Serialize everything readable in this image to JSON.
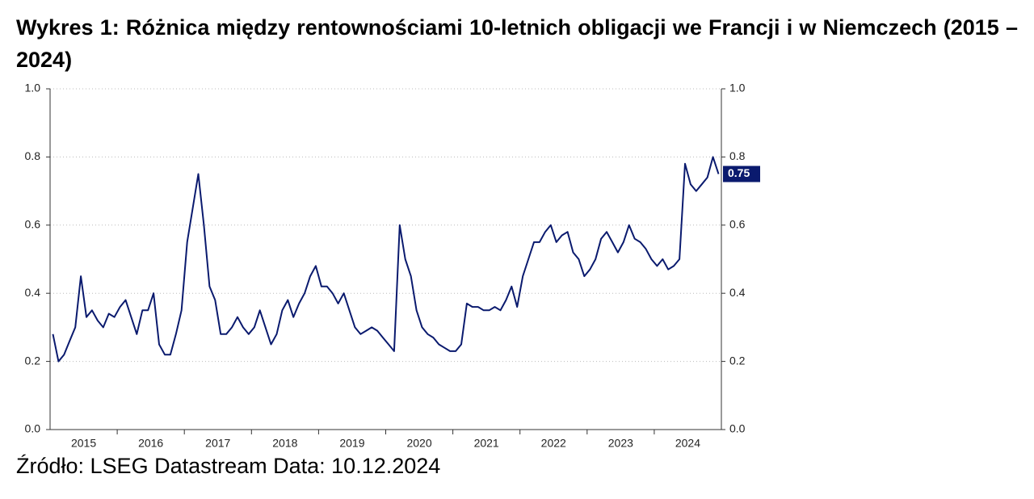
{
  "chart_data": {
    "type": "line",
    "title": "Wykres 1: Różnica między rentownościami 10-letnich obligacji we Francji i w Niemczech (2015 – 2024)",
    "source": "Źródło: LSEG Datastream Data: 10.12.2024",
    "categories": [
      null,
      null,
      null,
      null,
      null,
      null,
      "2015",
      null,
      null,
      null,
      null,
      null,
      null,
      null,
      null,
      null,
      null,
      null,
      "2016",
      null,
      null,
      null,
      null,
      null,
      null,
      null,
      null,
      null,
      null,
      null,
      "2017",
      null,
      null,
      null,
      null,
      null,
      null,
      null,
      null,
      null,
      null,
      null,
      "2018",
      null,
      null,
      null,
      null,
      null,
      null,
      null,
      null,
      null,
      null,
      null,
      "2019",
      null,
      null,
      null,
      null,
      null,
      null,
      null,
      null,
      null,
      null,
      null,
      "2020",
      null,
      null,
      null,
      null,
      null,
      null,
      null,
      null,
      null,
      null,
      null,
      "2021",
      null,
      null,
      null,
      null,
      null,
      null,
      null,
      null,
      null,
      null,
      null,
      "2022",
      null,
      null,
      null,
      null,
      null,
      null,
      null,
      null,
      null,
      null,
      null,
      "2023",
      null,
      null,
      null,
      null,
      null,
      null,
      null,
      null,
      null,
      null,
      null,
      "2024",
      null,
      null,
      null,
      null,
      null
    ],
    "series": [
      {
        "color": "#0a1a6e",
        "values": [
          0.28,
          0.2,
          0.22,
          0.26,
          0.3,
          0.45,
          0.33,
          0.35,
          0.32,
          0.3,
          0.34,
          0.33,
          0.36,
          0.38,
          0.33,
          0.28,
          0.35,
          0.35,
          0.4,
          0.25,
          0.22,
          0.22,
          0.28,
          0.35,
          0.55,
          0.65,
          0.75,
          0.6,
          0.42,
          0.38,
          0.28,
          0.28,
          0.3,
          0.33,
          0.3,
          0.28,
          0.3,
          0.35,
          0.3,
          0.25,
          0.28,
          0.35,
          0.38,
          0.33,
          0.37,
          0.4,
          0.45,
          0.48,
          0.42,
          0.42,
          0.4,
          0.37,
          0.4,
          0.35,
          0.3,
          0.28,
          0.29,
          0.3,
          0.29,
          0.27,
          0.25,
          0.23,
          0.6,
          0.5,
          0.45,
          0.35,
          0.3,
          0.28,
          0.27,
          0.25,
          0.24,
          0.23,
          0.23,
          0.25,
          0.37,
          0.36,
          0.36,
          0.35,
          0.35,
          0.36,
          0.35,
          0.38,
          0.42,
          0.36,
          0.45,
          0.5,
          0.55,
          0.55,
          0.58,
          0.6,
          0.55,
          0.57,
          0.58,
          0.52,
          0.5,
          0.45,
          0.47,
          0.5,
          0.56,
          0.58,
          0.55,
          0.52,
          0.55,
          0.6,
          0.56,
          0.55,
          0.53,
          0.5,
          0.48,
          0.5,
          0.47,
          0.48,
          0.5,
          0.78,
          0.72,
          0.7,
          0.72,
          0.74,
          0.8,
          0.75
        ]
      }
    ],
    "ylim": [
      0,
      1
    ],
    "yticks": [
      {
        "value": 0,
        "label": "0.0"
      },
      0.2,
      0.4,
      0.6,
      0.8,
      {
        "value": 1,
        "label": "1.0"
      }
    ],
    "y2lim": [
      0,
      1
    ],
    "y2ticks": [
      {
        "value": 0,
        "label": "0.0"
      },
      0.2,
      0.4,
      0.6,
      0.8,
      {
        "value": 1,
        "label": "1.0"
      }
    ],
    "grid": true
  }
}
